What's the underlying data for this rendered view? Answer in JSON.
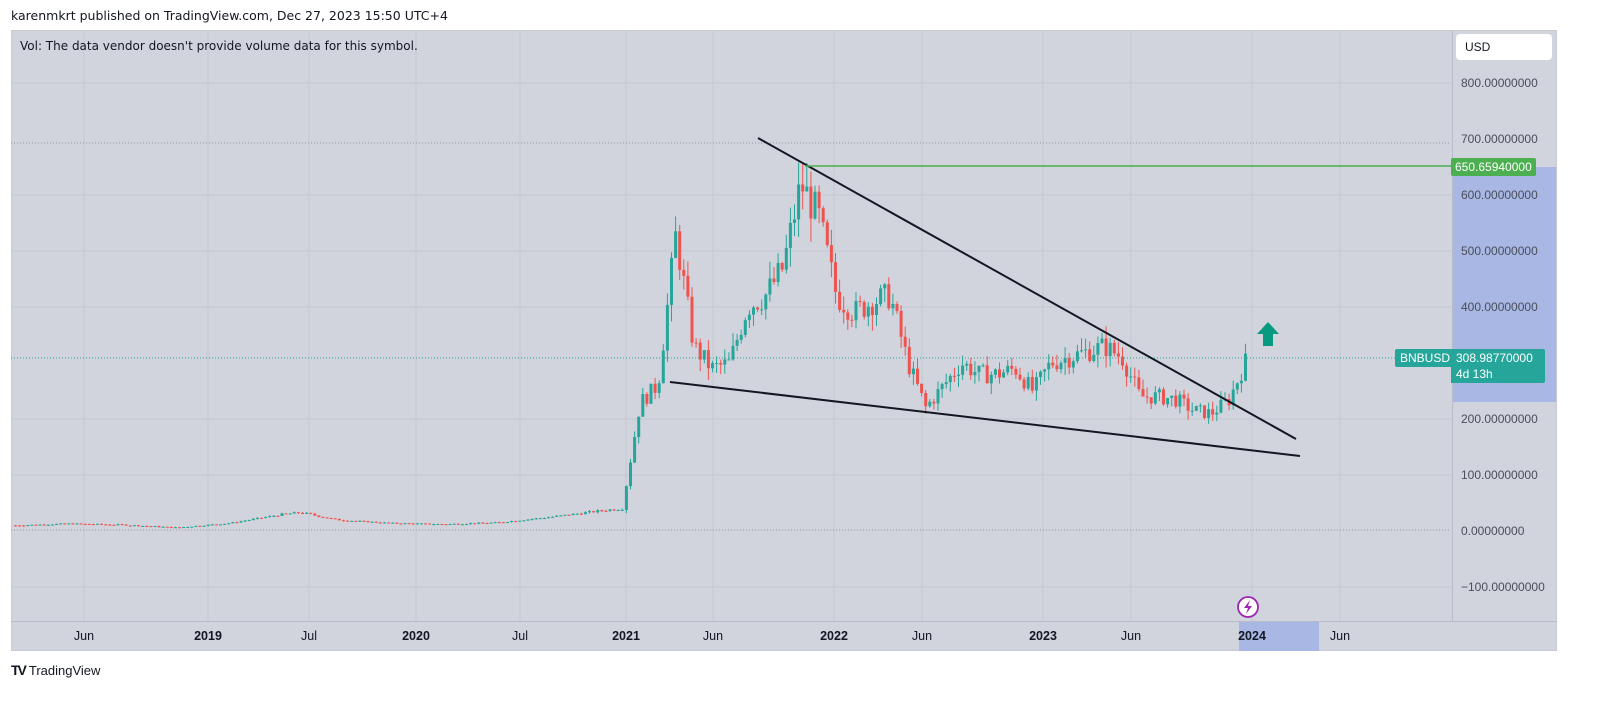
{
  "header": {
    "attribution": "karenmkrt published on TradingView.com, Dec 27, 2023 15:50 UTC+4"
  },
  "chart": {
    "vol_note": "Vol: The data vendor doesn't provide volume data for this symbol.",
    "currency_selector": "USD",
    "symbol": "BNBUSD",
    "last_price": "308.98770000",
    "countdown": "4d 13h",
    "horizontal_line_label": "650.65940000",
    "event_icon": "lightning-icon",
    "footer_brand": "TradingView",
    "footer_logo_mark": "TV"
  },
  "colors": {
    "background": "#d1d4dc",
    "up_candle": "#26a69a",
    "down_candle": "#ef5350",
    "trendline": "#131722",
    "horizontal_line": "#4caf50",
    "highlight_band": "#a8b7e3",
    "arrow": "#089981",
    "event_icon": "#9c27b0"
  },
  "price_axis": {
    "ticks": [
      "800.00000000",
      "700.00000000",
      "600.00000000",
      "500.00000000",
      "400.00000000",
      "200.00000000",
      "100.00000000",
      "0.00000000",
      "−100.00000000"
    ]
  },
  "time_axis": {
    "labels": [
      {
        "text": "Jun",
        "year": false
      },
      {
        "text": "2019",
        "year": true
      },
      {
        "text": "Jul",
        "year": false
      },
      {
        "text": "2020",
        "year": true
      },
      {
        "text": "Jul",
        "year": false
      },
      {
        "text": "2021",
        "year": true
      },
      {
        "text": "Jun",
        "year": false
      },
      {
        "text": "2022",
        "year": true
      },
      {
        "text": "Jun",
        "year": false
      },
      {
        "text": "2023",
        "year": true
      },
      {
        "text": "Jun",
        "year": false
      },
      {
        "text": "2024",
        "year": true
      },
      {
        "text": "Jun",
        "year": false
      }
    ]
  },
  "chart_data": {
    "type": "candlestick",
    "title": "BNBUSD",
    "xlabel": "",
    "ylabel": "USD",
    "ylim": [
      -150,
      880
    ],
    "grid": true,
    "x_ticks": [
      "Jun 2018",
      "2019",
      "Jul 2019",
      "2020",
      "Jul 2020",
      "2021",
      "Jun 2021",
      "2022",
      "Jun 2022",
      "2023",
      "Jun 2023",
      "2024",
      "Jun 2024"
    ],
    "y_ticks": [
      -100,
      0,
      100,
      200,
      400,
      500,
      600,
      700,
      800
    ],
    "series": [
      {
        "name": "BNBUSD weekly close (approx.)",
        "x": [
          "2018-03",
          "2018-06",
          "2018-09",
          "2018-12",
          "2019-03",
          "2019-06",
          "2019-07",
          "2019-09",
          "2019-12",
          "2020-03",
          "2020-06",
          "2020-09",
          "2020-12",
          "2021-01",
          "2021-02",
          "2021-03",
          "2021-04",
          "2021-05",
          "2021-06",
          "2021-07",
          "2021-08",
          "2021-09",
          "2021-10",
          "2021-11",
          "2021-12",
          "2022-01",
          "2022-02",
          "2022-03",
          "2022-04",
          "2022-05",
          "2022-06",
          "2022-07",
          "2022-08",
          "2022-09",
          "2022-10",
          "2022-11",
          "2022-12",
          "2023-01",
          "2023-02",
          "2023-03",
          "2023-04",
          "2023-05",
          "2023-06",
          "2023-07",
          "2023-08",
          "2023-09",
          "2023-10",
          "2023-11",
          "2023-12"
        ],
        "values": [
          10,
          13,
          11,
          6,
          14,
          30,
          33,
          20,
          14,
          12,
          15,
          25,
          37,
          40,
          230,
          260,
          530,
          330,
          290,
          300,
          400,
          420,
          470,
          620,
          560,
          420,
          390,
          410,
          420,
          300,
          220,
          260,
          300,
          280,
          280,
          290,
          250,
          300,
          310,
          320,
          330,
          310,
          240,
          240,
          235,
          215,
          210,
          235,
          309
        ]
      }
    ],
    "annotations": [
      {
        "type": "horizontal_line",
        "price": 650.6594,
        "label": "650.65940000",
        "color": "#4caf50"
      },
      {
        "type": "trendline",
        "name": "upper descending resistance",
        "from": {
          "date": "2021-08",
          "price": 700
        },
        "to": {
          "date": "2024-03",
          "price": 165
        }
      },
      {
        "type": "trendline",
        "name": "lower support",
        "from": {
          "date": "2021-04",
          "price": 265
        },
        "to": {
          "date": "2024-04",
          "price": 135
        }
      },
      {
        "type": "arrow_up",
        "near": {
          "date": "2024-01",
          "price": 365
        }
      },
      {
        "type": "last_price",
        "symbol": "BNBUSD",
        "price": 308.9877,
        "countdown": "4d 13h"
      }
    ],
    "legend_position": "none"
  }
}
